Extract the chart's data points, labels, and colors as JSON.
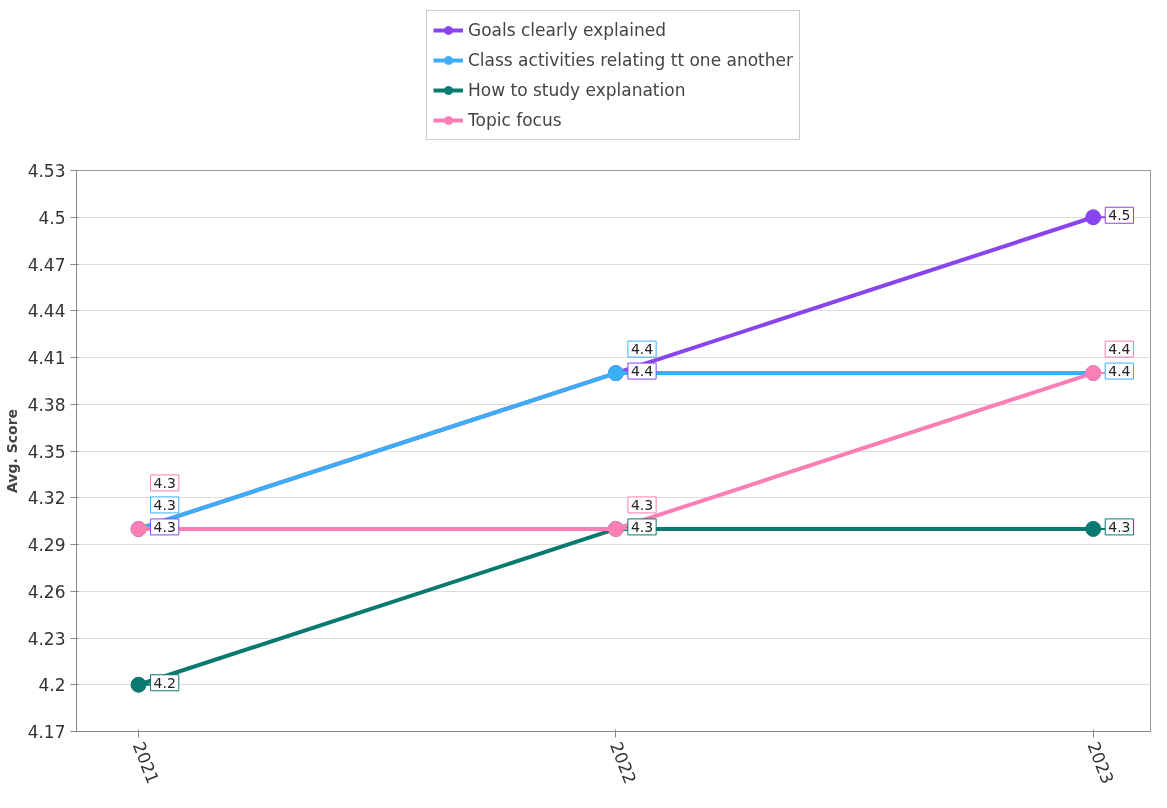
{
  "chart_data": {
    "type": "line",
    "ylabel": "Avg. Score",
    "categories": [
      "2021",
      "2022",
      "2023"
    ],
    "series": [
      {
        "name": "Goals clearly explained",
        "color": "#8a44ee",
        "values": [
          4.3,
          4.4,
          4.5
        ]
      },
      {
        "name": "Class activities relating tt one another",
        "color": "#3daef5",
        "values": [
          4.3,
          4.4,
          4.4
        ]
      },
      {
        "name": "How to study explanation",
        "color": "#087a70",
        "values": [
          4.2,
          4.3,
          4.3
        ]
      },
      {
        "name": "Topic focus",
        "color": "#fb7eb4",
        "values": [
          4.3,
          4.3,
          4.4
        ]
      }
    ],
    "ylim": [
      4.17,
      4.53
    ],
    "yticks": [
      4.17,
      4.2,
      4.23,
      4.26,
      4.29,
      4.32,
      4.35,
      4.38,
      4.41,
      4.44,
      4.47,
      4.5,
      4.53
    ],
    "grid": "y",
    "legend": "top",
    "marker": "circle",
    "line_style": "solid",
    "data_labels": true
  }
}
